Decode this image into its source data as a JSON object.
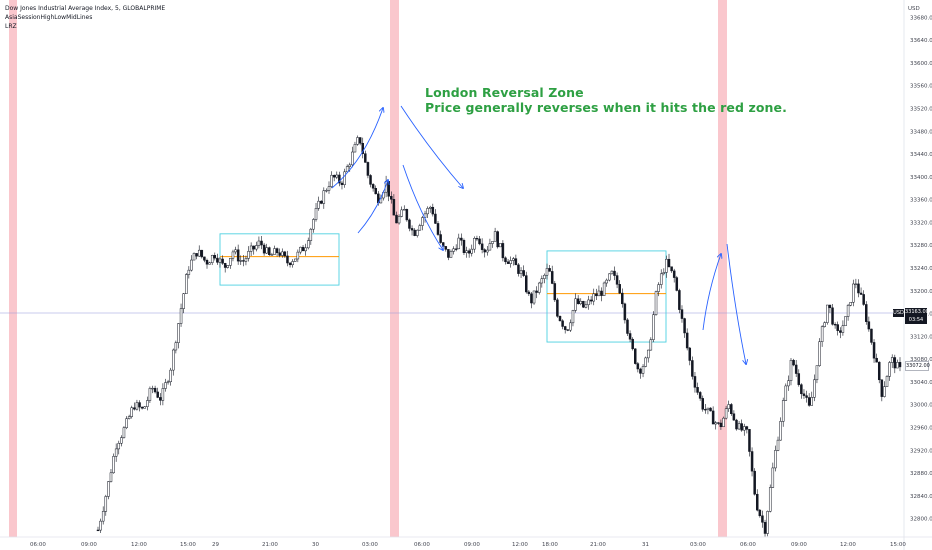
{
  "legend": {
    "title": "Dow Jones Industrial Average Index, 5, GLOBALPRIME",
    "indicator1": "AsiaSessionHighLowMidLines",
    "indicator2": "LRZ"
  },
  "annotation": {
    "line1": "London Reversal Zone",
    "line2": "Price generally reverses when it hits the red zone."
  },
  "axis": {
    "currency": "USD",
    "price_labels": [
      "33680.00",
      "33640.00",
      "33600.00",
      "33560.00",
      "33520.00",
      "33480.00",
      "33440.00",
      "33400.00",
      "33360.00",
      "33320.00",
      "33280.00",
      "33240.00",
      "33200.00",
      "33160.00",
      "33120.00",
      "33080.00",
      "33040.00",
      "33000.00",
      "32960.00",
      "32920.00",
      "32880.00",
      "32840.00",
      "32800.00"
    ],
    "time_labels": [
      "06:00",
      "09:00",
      "12:00",
      "15:00",
      "29",
      "21:00",
      "30",
      "03:00",
      "06:00",
      "09:00",
      "12:00",
      "18:00",
      "21:00",
      "31",
      "03:00",
      "06:00",
      "09:00",
      "12:00",
      "15:00"
    ]
  },
  "price_tags": {
    "current": "33163.00",
    "current_sub": "03:54",
    "symbol": "USD",
    "ref": "33072.00"
  },
  "colors": {
    "zone": "#f8b4bc",
    "box": "#4dd0e1",
    "midline": "#ff9800",
    "arrow": "#2962ff",
    "candle": "#131722",
    "annotation": "#2ea043",
    "hline": "#9598d9"
  },
  "chart_data": {
    "type": "candlestick",
    "ylim": [
      32780,
      33700
    ],
    "zones": [
      "pre-06:00",
      "03:00-06:00 (30)",
      "03:00-06:00 (31)"
    ],
    "asia_boxes": [
      {
        "high": 33300,
        "low": 33210,
        "mid": 33260
      },
      {
        "high": 33270,
        "low": 33110,
        "mid": 33195
      }
    ],
    "price_path": [
      32780,
      32850,
      32930,
      32960,
      33000,
      32990,
      33030,
      33010,
      33060,
      33150,
      33240,
      33270,
      33250,
      33265,
      33240,
      33270,
      33250,
      33270,
      33285,
      33260,
      33270,
      33250,
      33260,
      33280,
      33330,
      33370,
      33400,
      33390,
      33430,
      33470,
      33400,
      33360,
      33390,
      33320,
      33340,
      33300,
      33330,
      33350,
      33280,
      33260,
      33290,
      33260,
      33300,
      33270,
      33300,
      33260,
      33250,
      33230,
      33180,
      33210,
      33240,
      33160,
      33130,
      33180,
      33170,
      33190,
      33200,
      33230,
      33200,
      33110,
      33060,
      33080,
      33200,
      33250,
      33220,
      33130,
      33050,
      33000,
      32980,
      32960,
      33000,
      32960,
      32950,
      32830,
      32780,
      32900,
      33000,
      33080,
      33030,
      32990,
      33100,
      33180,
      33120,
      33150,
      33220,
      33170,
      33100,
      33020,
      33080,
      33060
    ]
  }
}
